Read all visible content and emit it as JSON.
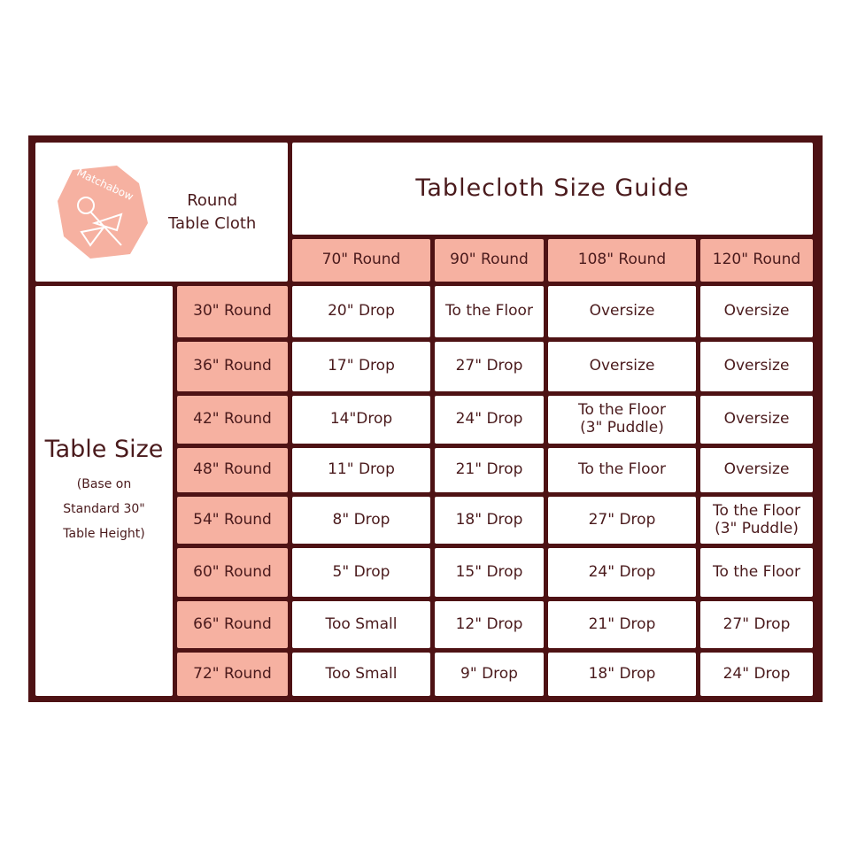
{
  "logo_text": "Matchabow",
  "corner_label": [
    "Round",
    "Table Cloth"
  ],
  "title": "Tablecloth Size Guide",
  "colors": {
    "border": "#4e1214",
    "accent": "#f6b1a1",
    "text": "#4a1a1c"
  },
  "side_label": {
    "title": "Table Size",
    "note": [
      "(Base on",
      "Standard 30\"",
      "Table Height)"
    ]
  },
  "columns": [
    "70\" Round",
    "90\" Round",
    "108\" Round",
    "120\" Round"
  ],
  "rows": [
    {
      "size": "30\" Round",
      "cells": [
        "20\" Drop",
        "To the Floor",
        "Oversize",
        "Oversize"
      ]
    },
    {
      "size": "36\" Round",
      "cells": [
        "17\" Drop",
        "27\" Drop",
        "Oversize",
        "Oversize"
      ]
    },
    {
      "size": "42\" Round",
      "cells": [
        "14\"Drop",
        "24\" Drop",
        "To the Floor\n(3\" Puddle)",
        "Oversize"
      ]
    },
    {
      "size": "48\" Round",
      "cells": [
        "11\" Drop",
        "21\" Drop",
        "To the Floor",
        "Oversize"
      ]
    },
    {
      "size": "54\" Round",
      "cells": [
        "8\" Drop",
        "18\" Drop",
        "27\" Drop",
        "To the Floor\n(3\" Puddle)"
      ]
    },
    {
      "size": "60\" Round",
      "cells": [
        "5\" Drop",
        "15\" Drop",
        "24\" Drop",
        "To the Floor"
      ]
    },
    {
      "size": "66\" Round",
      "cells": [
        "Too Small",
        "12\" Drop",
        "21\" Drop",
        "27\" Drop"
      ]
    },
    {
      "size": "72\" Round",
      "cells": [
        "Too Small",
        "9\" Drop",
        "18\" Drop",
        "24\" Drop"
      ]
    }
  ]
}
